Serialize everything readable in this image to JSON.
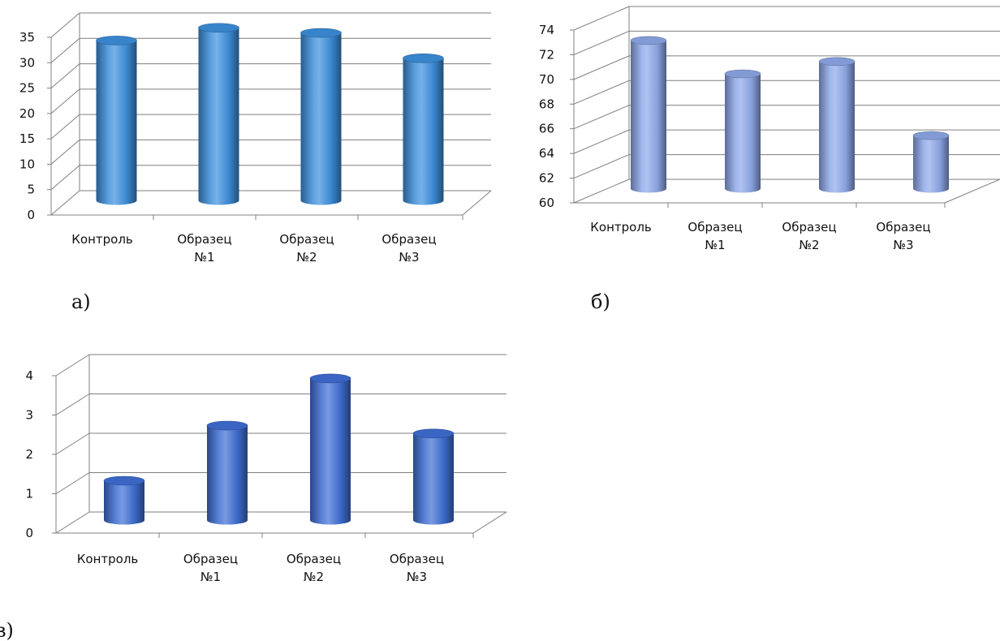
{
  "colors": {
    "chart_a_bar": "#3d8fdc",
    "chart_b_bar": "#8ea8e8",
    "chart_c_bar": "#3f6ed4",
    "gridline": "#7f7f7f",
    "axis": "#808080"
  },
  "chart_data": [
    {
      "type": "bar",
      "panel_label": "а)",
      "categories": [
        "Контроль",
        "Образец №1",
        "Образец №2",
        "Образец №3"
      ],
      "category_lines": [
        [
          "Контроль"
        ],
        [
          "Образец",
          "№1"
        ],
        [
          "Образец",
          "№2"
        ],
        [
          "Образец",
          "№3"
        ]
      ],
      "values": [
        31.5,
        34,
        33,
        28
      ],
      "ylim": [
        0,
        35
      ],
      "yticks": [
        0,
        5,
        10,
        15,
        20,
        25,
        30,
        35
      ],
      "grid": true,
      "style": "3d-cylinder"
    },
    {
      "type": "bar",
      "panel_label": "б)",
      "categories": [
        "Контроль",
        "Образец №1",
        "Образец №2",
        "Образец №3"
      ],
      "category_lines": [
        [
          "Контроль"
        ],
        [
          "Образец",
          "№1"
        ],
        [
          "Образец",
          "№2"
        ],
        [
          "Образец",
          "№3"
        ]
      ],
      "values": [
        72,
        69.3,
        70.3,
        64.3
      ],
      "ylim": [
        60,
        74
      ],
      "yticks": [
        60,
        62,
        64,
        66,
        68,
        70,
        72,
        74
      ],
      "grid": true,
      "style": "3d-cylinder"
    },
    {
      "type": "bar",
      "panel_label": "в)",
      "categories": [
        "Контроль",
        "Образец №1",
        "Образец №2",
        "Образец №3"
      ],
      "category_lines": [
        [
          "Контроль"
        ],
        [
          "Образец",
          "№1"
        ],
        [
          "Образец",
          "№2"
        ],
        [
          "Образец",
          "№3"
        ]
      ],
      "values": [
        1,
        2.4,
        3.6,
        2.2
      ],
      "ylim": [
        0,
        4
      ],
      "yticks": [
        0,
        1,
        2,
        3,
        4
      ],
      "grid": true,
      "style": "3d-cylinder"
    }
  ]
}
